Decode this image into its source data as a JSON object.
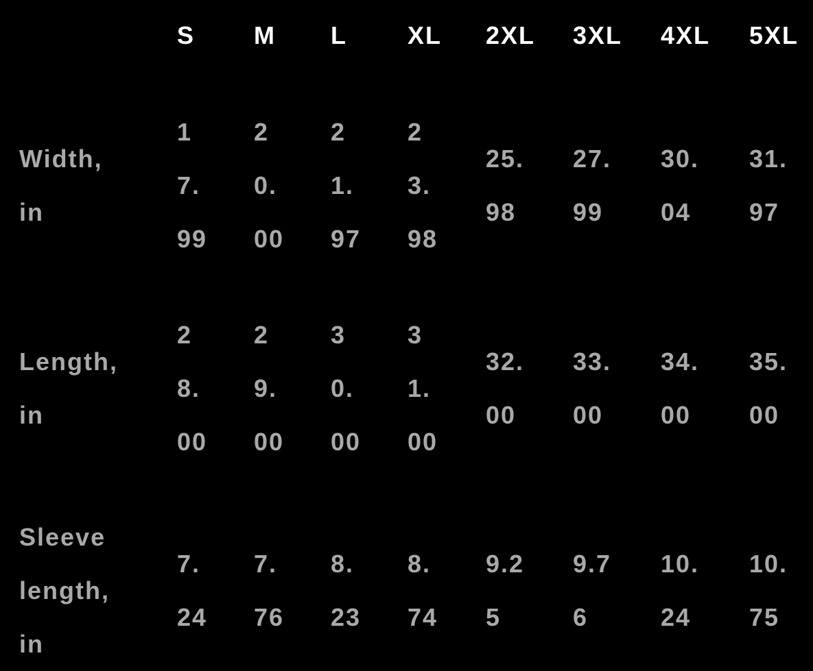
{
  "sizes": [
    "S",
    "M",
    "L",
    "XL",
    "2XL",
    "3XL",
    "4XL",
    "5XL"
  ],
  "rows": [
    {
      "label": "Width, in",
      "values": [
        "17.99",
        "20.00",
        "21.97",
        "23.98",
        "25.98",
        "27.99",
        "30.04",
        "31.97"
      ]
    },
    {
      "label": "Length, in",
      "values": [
        "28.00",
        "29.00",
        "30.00",
        "31.00",
        "32.00",
        "33.00",
        "34.00",
        "35.00"
      ]
    },
    {
      "label": "Sleeve length, in",
      "values": [
        "7.24",
        "7.76",
        "8.23",
        "8.74",
        "9.25",
        "9.76",
        "10.24",
        "10.75"
      ]
    }
  ],
  "colors": {
    "background": "#000000",
    "header": "#ffffff",
    "body": "#a9a9a9"
  }
}
